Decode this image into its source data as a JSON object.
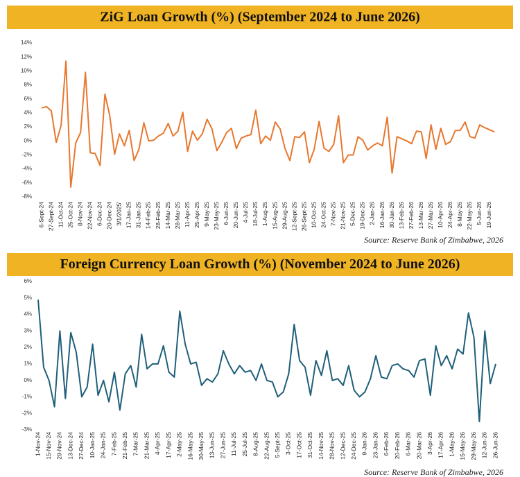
{
  "chart_data": [
    {
      "type": "line",
      "title": "ZiG Loan Growth  (%) (September 2024 to June 2026)",
      "source": "Source: Reserve Bank of Zimbabwe, 2026",
      "color": "#e8772e",
      "categories": [
        "6-Sept-24",
        null,
        "27-Sept-24",
        null,
        "11-Oct-24",
        null,
        "25-Oct-24",
        null,
        "8-Nov-24",
        null,
        "22-Nov-24",
        null,
        "6-Dec-24",
        null,
        "20-Dec-24",
        null,
        "3/1/2025'",
        null,
        "17-Jan-25",
        null,
        "31-Jan-25",
        null,
        "14-Feb-25",
        null,
        "28-Feb-25",
        null,
        "14-Mar-25",
        null,
        "28-Mar-25",
        null,
        "11-Apr-25",
        null,
        "25-Apr-25",
        null,
        "9-May-25",
        null,
        "23-May-25",
        null,
        "6-Jun-25",
        null,
        "20-Jun-25",
        null,
        "4-Jul-25",
        null,
        "18-Jul-25",
        null,
        "1-Aug-25",
        null,
        "15-Aug-25",
        null,
        "29-Aug-25",
        null,
        "12-Sept-25",
        null,
        "26-Sept-25",
        null,
        "10-Oct-25",
        null,
        "24-Oct-25",
        null,
        "7-Nov-25",
        null,
        "21-Nov-25",
        null,
        "5-Dec-25",
        null,
        "19-Dec-25",
        null,
        "2-Jan-26",
        null,
        "16-Jan-26",
        null,
        "30-Jan-26",
        null,
        "13-Feb-26",
        null,
        "27-Feb-26",
        null,
        "13-Mar-26",
        null,
        "27-Mar-26",
        null,
        "10-Apr-26",
        null,
        "24-Apr-26",
        null,
        "8-May-26",
        null,
        "22-May-26",
        null,
        "5-Jun-26",
        null,
        "19-Jun-26",
        null
      ],
      "values": [
        4.7,
        4.9,
        4.3,
        -0.2,
        2.2,
        11.4,
        -6.6,
        -0.3,
        1.2,
        9.8,
        -1.7,
        -1.8,
        -3.5,
        6.7,
        3.6,
        -1.9,
        1.0,
        -0.7,
        1.5,
        -2.8,
        -1.2,
        2.6,
        0.0,
        0.1,
        0.7,
        1.1,
        2.5,
        0.7,
        1.4,
        4.1,
        -1.5,
        1.4,
        0.1,
        1.0,
        3.1,
        1.7,
        -1.4,
        -0.2,
        1.2,
        1.8,
        -1.1,
        0.4,
        0.7,
        0.9,
        4.4,
        -0.4,
        0.7,
        0.1,
        2.7,
        1.7,
        -1.1,
        -2.8,
        0.6,
        0.5,
        1.3,
        -3.1,
        -1.2,
        2.8,
        -1.0,
        -1.5,
        -0.5,
        3.6,
        -3.1,
        -2.0,
        -2.0,
        0.6,
        0.1,
        -1.3,
        -0.7,
        -0.3,
        -0.7,
        3.4,
        -4.6,
        0.6,
        0.3,
        0.0,
        -0.4,
        1.4,
        1.3,
        -2.5,
        2.3,
        -1.2,
        1.8,
        -0.5,
        -0.1,
        1.5,
        1.5,
        2.7,
        0.6,
        0.4,
        2.3,
        1.9,
        1.6,
        1.3
      ],
      "ylim": [
        -8,
        14
      ],
      "yticks": [
        {
          "value": -8,
          "label": "-8%"
        },
        {
          "value": -6,
          "label": "-6%"
        },
        {
          "value": -4,
          "label": "-4%"
        },
        {
          "value": -2,
          "label": "-2%"
        },
        {
          "value": 0,
          "label": "0%"
        },
        {
          "value": 2,
          "label": "2%"
        },
        {
          "value": 4,
          "label": "4%"
        },
        {
          "value": 6,
          "label": "6%"
        },
        {
          "value": 8,
          "label": "8%"
        },
        {
          "value": 10,
          "label": "10%"
        },
        {
          "value": 12,
          "label": "12%"
        },
        {
          "value": 14,
          "label": "14%"
        }
      ]
    },
    {
      "type": "line",
      "title": "Foreign Currency Loan Growth (%) (November 2024 to June 2026)",
      "source": "Source: Reserve Bank of Zimbabwe, 2026",
      "color": "#1f5f7a",
      "categories": [
        "1-Nov-24",
        null,
        "15-Nov-24",
        null,
        "29-Nov-24",
        null,
        "13-Dec-24",
        null,
        "27-Dec-24",
        null,
        "10-Jan-25",
        null,
        "24-Jan-25",
        null,
        "7-Feb-25",
        null,
        "21-Feb-25",
        null,
        "7-Mar-25",
        null,
        "21-Mar-25",
        null,
        "4-Apr-25",
        null,
        "17-Apr-25",
        null,
        "2-May-25",
        null,
        "16-May-25",
        null,
        "30-May-25",
        null,
        "13-Jun-25",
        null,
        "27-Jun-25",
        null,
        "11-Jul-25",
        null,
        "25-Jul-25",
        null,
        "8-Aug-25",
        null,
        "22-Aug-25",
        null,
        "5-Sept-25",
        null,
        "3-Oct-25",
        null,
        "17-Oct-25",
        null,
        "31-Oct-25",
        null,
        "14-Nov-25",
        null,
        "28-Nov-25",
        null,
        "12-Dec-25",
        null,
        "24-Dec-25",
        null,
        "9-Jan-26",
        null,
        "23-Jan-26",
        null,
        "6-Feb-26",
        null,
        "20-Feb-26",
        null,
        "6-Mar-26",
        null,
        "20-Mar-26",
        null,
        "3-Apr-26",
        null,
        "17-Apr-26",
        null,
        "1-May-26",
        null,
        "15-May-26",
        null,
        "29-May-26",
        null,
        "12-Jun-26",
        null,
        "26-Jun-26"
      ],
      "values": [
        4.9,
        0.8,
        0.0,
        -1.6,
        3.0,
        -1.1,
        2.9,
        1.7,
        -1.0,
        -0.4,
        2.2,
        -0.9,
        0.0,
        -1.3,
        0.5,
        -1.8,
        0.4,
        0.9,
        -0.4,
        2.8,
        0.7,
        1.0,
        1.0,
        2.1,
        0.5,
        0.2,
        4.2,
        2.2,
        1.0,
        1.1,
        -0.3,
        0.1,
        -0.1,
        0.4,
        1.8,
        1.0,
        0.4,
        0.9,
        0.5,
        0.6,
        0.0,
        1.0,
        0.0,
        -0.1,
        -1.0,
        -0.7,
        0.4,
        3.4,
        1.2,
        0.8,
        -0.9,
        1.2,
        0.3,
        1.8,
        0.0,
        0.1,
        -0.3,
        0.9,
        -0.6,
        -1.0,
        -0.7,
        0.1,
        1.5,
        0.2,
        0.1,
        0.9,
        1.0,
        0.7,
        0.6,
        0.2,
        1.2,
        1.3,
        -0.9,
        2.1,
        0.9,
        1.5,
        0.7,
        1.9,
        1.6,
        4.1,
        2.6,
        -2.5,
        3.0,
        -0.2,
        1.0
      ],
      "ylim": [
        -3,
        6
      ],
      "yticks": [
        {
          "value": -3,
          "label": "-3%"
        },
        {
          "value": -2,
          "label": "-2%"
        },
        {
          "value": -1,
          "label": "-1%"
        },
        {
          "value": 0,
          "label": "0%"
        },
        {
          "value": 1,
          "label": "1%"
        },
        {
          "value": 2,
          "label": "2%"
        },
        {
          "value": 3,
          "label": "3%"
        },
        {
          "value": 4,
          "label": "4%"
        },
        {
          "value": 5,
          "label": "5%"
        },
        {
          "value": 6,
          "label": "6%"
        }
      ]
    }
  ]
}
